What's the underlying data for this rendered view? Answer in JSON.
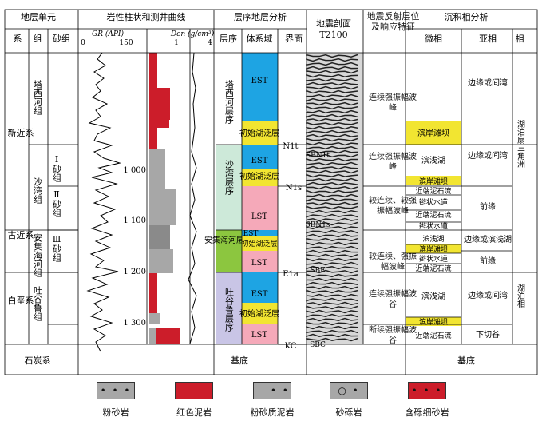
{
  "headers": {
    "strat_unit": "地层单元",
    "system": "系",
    "group": "组",
    "sand_group": "砂组",
    "lithology_logs": "岩性柱状和测井曲线",
    "gr_label": "GR (API)",
    "gr_ticks": [
      "0",
      "150"
    ],
    "den_label": "Den (g/cm³)",
    "den_ticks": [
      "1",
      "4"
    ],
    "sequence_analysis": "层序地层分析",
    "sequence": "层序",
    "system_tract": "体系域",
    "interface": "界面",
    "seismic": "地震剖面",
    "seismic_line": "T2100",
    "seismic_reflection": "地震反射层位及响应特征",
    "facies_analysis": "沉积相分析",
    "microfacies": "微相",
    "subfacies": "亚相",
    "facies": "相"
  },
  "systems": [
    "新近系",
    "古近系",
    "白垩系",
    "石炭系"
  ],
  "groups": [
    "塔西河组",
    "沙湾组",
    "安集海河组",
    "吐谷鲁组"
  ],
  "sand_groups": [
    "Ⅰ砂组",
    "Ⅱ砂组",
    "Ⅲ砂组"
  ],
  "depths": [
    "1 000",
    "1 100",
    "1 200",
    "1 300"
  ],
  "sequences": [
    "塔西河层序",
    "沙湾层序",
    "安集海河层序",
    "吐谷鲁层序",
    "基底"
  ],
  "tracts": [
    "EST",
    "初始湖泛层",
    "EST",
    "初始湖泛层",
    "LST",
    "EST",
    "初始湖泛层",
    "LST",
    "EST",
    "初始湖泛层",
    "LST"
  ],
  "interfaces": [
    "N1t",
    "N1s",
    "E1a",
    "KC"
  ],
  "seismic_labels": [
    "SBN1t",
    "SBN1s",
    "SBE",
    "SBC"
  ],
  "responses": [
    "连续强振幅波峰",
    "连续强振幅波峰",
    "较连续、较强振幅波峰",
    "较连续、强振幅波峰",
    "连续强振幅波谷",
    "断续强振幅波谷",
    "基底"
  ],
  "microfacies": [
    "滨岸滩坝",
    "滨浅湖",
    "滨岸滩坝",
    "近端泥石流",
    "辫状水道",
    "近端泥石流",
    "辫状水道",
    "滨浅湖",
    "滨岸滩坝",
    "辫状水道",
    "近端泥石流",
    "滨浅湖",
    "滨岸滩坝",
    "近端泥石流"
  ],
  "subfacies": [
    "边缘或间湾",
    "边缘或间湾",
    "前缘",
    "边缘或滨浅湖",
    "前缘",
    "边缘或间湾",
    "下切谷"
  ],
  "facies": [
    "湖泊扇三角洲",
    "湖泊相"
  ],
  "basement": "基底",
  "legend": [
    "粉砂岩",
    "红色泥岩",
    "粉砂质泥岩",
    "砂砾岩",
    "含砾细砂岩"
  ],
  "colors": {
    "est": "#1ea4e3",
    "flood": "#f2e531",
    "lst": "#f5a9b9",
    "seq_shawan": "#cde9d9",
    "seq_anji": "#8cc63f",
    "seq_tugulu": "#c9c5e6",
    "red_mud": "#cc1d2a",
    "gray_rock": "#a7a7a7"
  }
}
